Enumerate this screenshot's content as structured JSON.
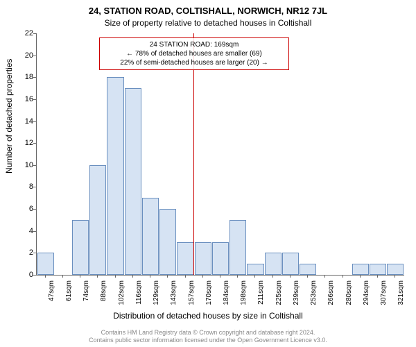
{
  "title_main": "24, STATION ROAD, COLTISHALL, NORWICH, NR12 7JL",
  "title_sub": "Size of property relative to detached houses in Coltishall",
  "ylabel": "Number of detached properties",
  "xlabel": "Distribution of detached houses by size in Coltishall",
  "chart": {
    "type": "bar",
    "bar_fill": "#d6e3f3",
    "bar_stroke": "#6a8fbf",
    "bar_stroke_width": 1,
    "background_color": "#ffffff",
    "ylim": [
      0,
      22
    ],
    "ytick_step": 2,
    "categories": [
      "47sqm",
      "61sqm",
      "74sqm",
      "88sqm",
      "102sqm",
      "116sqm",
      "129sqm",
      "143sqm",
      "157sqm",
      "170sqm",
      "184sqm",
      "198sqm",
      "211sqm",
      "225sqm",
      "239sqm",
      "253sqm",
      "266sqm",
      "280sqm",
      "294sqm",
      "307sqm",
      "321sqm"
    ],
    "values": [
      2,
      0,
      5,
      10,
      18,
      17,
      7,
      6,
      3,
      3,
      3,
      5,
      1,
      2,
      2,
      1,
      0,
      0,
      1,
      1,
      1
    ],
    "reference_line": {
      "x_index_after": 9,
      "color": "#cc0000"
    },
    "callout": {
      "border_color": "#cc0000",
      "lines": [
        "24 STATION ROAD: 169sqm",
        "← 78% of detached houses are smaller (69)",
        "22% of semi-detached houses are larger (20) →"
      ]
    }
  },
  "attribution_line1": "Contains HM Land Registry data © Crown copyright and database right 2024.",
  "attribution_line2": "Contains public sector information licensed under the Open Government Licence v3.0."
}
